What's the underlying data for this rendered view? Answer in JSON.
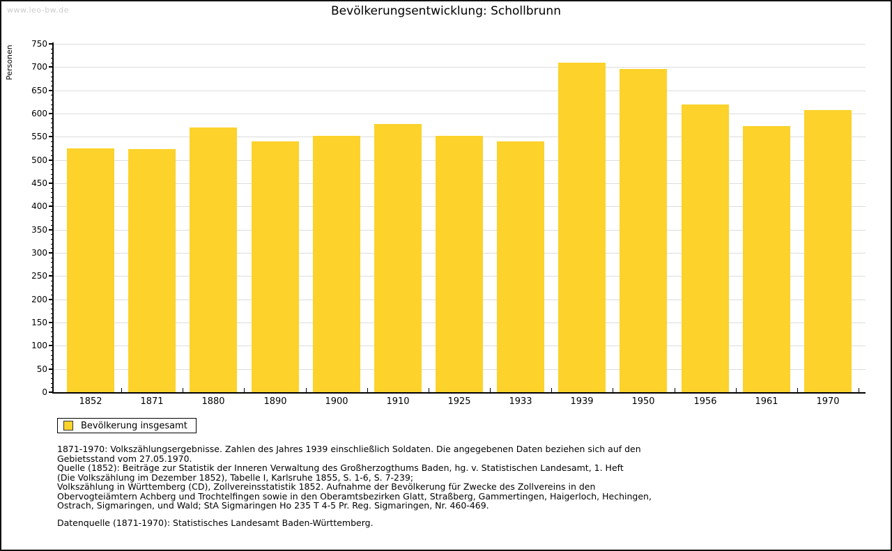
{
  "page": {
    "watermark": "www.leo-bw.de",
    "title": "Bevölkerungsentwicklung: Schollbrunn"
  },
  "chart_data": {
    "type": "bar",
    "title": "Bevölkerungsentwicklung: Schollbrunn",
    "xlabel": "",
    "ylabel": "Personen",
    "categories": [
      "1852",
      "1871",
      "1880",
      "1890",
      "1900",
      "1910",
      "1925",
      "1933",
      "1939",
      "1950",
      "1956",
      "1961",
      "1970"
    ],
    "values": [
      525,
      523,
      570,
      540,
      552,
      578,
      552,
      540,
      710,
      696,
      620,
      573,
      608
    ],
    "series_name": "Bevölkerung insgesamt",
    "ylim": [
      0,
      750
    ],
    "y_major_step": 50,
    "y_minor_step": 10,
    "y_tick_labels": [
      0,
      50,
      100,
      150,
      200,
      250,
      300,
      350,
      400,
      450,
      500,
      550,
      600,
      650,
      700,
      750
    ],
    "grid": true,
    "legend_position": "bottom-left",
    "bar_color": "#FCD22B",
    "gridline_color": "#DCDCDC",
    "axis_color": "#000000"
  },
  "legend": {
    "label": "Bevölkerung insgesamt",
    "swatch_color": "#FCD22B"
  },
  "footnotes": {
    "lines": [
      "1871-1970: Volkszählungsergebnisse. Zahlen des Jahres 1939 einschließlich Soldaten. Die angegebenen Daten beziehen sich auf den",
      "Gebietsstand vom 27.05.1970.",
      "Quelle (1852): Beiträge zur Statistik der Inneren Verwaltung des Großherzogthums Baden, hg. v. Statistischen Landesamt, 1. Heft",
      "(Die Volkszählung im Dezember 1852), Tabelle I, Karlsruhe 1855, S. 1-6, S. 7-239;",
      "Volkszählung in Württemberg (CD), Zollvereinsstatistik 1852. Aufnahme der Bevölkerung für Zwecke des Zollvereins in den",
      "Obervogteiämtern Achberg und Trochtelfingen sowie in den Oberamtsbezirken Glatt, Straßberg, Gammertingen, Haigerloch, Hechingen,",
      "Ostrach, Sigmaringen, und Wald; StA Sigmaringen Ho 235 T 4-5 Pr. Reg. Sigmaringen, Nr. 460-469."
    ],
    "datasource": "Datenquelle (1871-1970): Statistisches Landesamt Baden-Württemberg."
  }
}
